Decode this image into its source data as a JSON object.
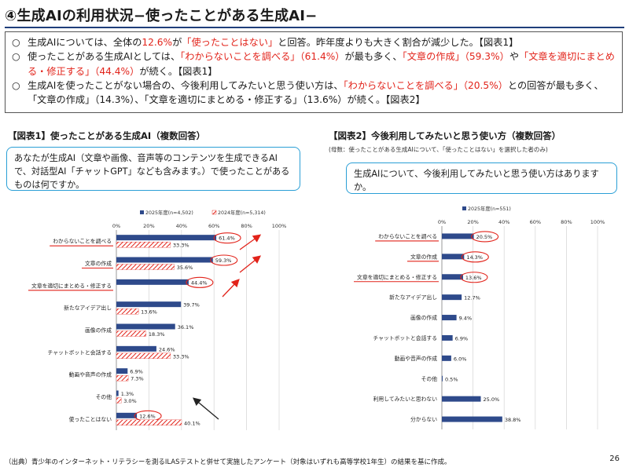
{
  "header": {
    "title": "④生成AIの利用状況−使ったことがある生成AI−"
  },
  "summary": {
    "bullet_mark": "○",
    "bullets": [
      [
        {
          "t": "生成AIについては、全体の",
          "red": false
        },
        {
          "t": "12.6%",
          "red": true
        },
        {
          "t": "が",
          "red": false
        },
        {
          "t": "「使ったことはない」",
          "red": true
        },
        {
          "t": "と回答。昨年度よりも大きく割合が減少した。【図表1】",
          "red": false
        }
      ],
      [
        {
          "t": "使ったことがある生成AIとしては、",
          "red": false
        },
        {
          "t": "「わからないことを調べる」（61.4%）",
          "red": true
        },
        {
          "t": "が最も多く、",
          "red": false
        },
        {
          "t": "「文章の作成」（59.3%）",
          "red": true
        },
        {
          "t": "や",
          "red": false
        },
        {
          "t": "「文章を適切にまとめる・修正する」（44.4%）",
          "red": true
        },
        {
          "t": "が続く。【図表1】",
          "red": false
        }
      ],
      [
        {
          "t": "生成AIを使ったことがない場合の、今後利用してみたいと思う使い方は、",
          "red": false
        },
        {
          "t": "「わからないことを調べる」（20.5%）",
          "red": true
        },
        {
          "t": "との回答が最も多く、「文章の作成」（14.3%）、「文章を適切にまとめる・修正する」（13.6%）が続く。【図表2】",
          "red": false
        }
      ]
    ]
  },
  "fig1": {
    "title": "【図表1】使ったことがある生成AI（複数回答）",
    "question": "あなたが生成AI（文章や画像、音声等のコンテンツを生成できるAIで、対話型AI「チャットGPT」なども含みます。）で使ったことがあるものは何ですか。"
  },
  "fig2": {
    "title": "【図表2】今後利用してみたいと思う使い方（複数回答）",
    "note": "(母数：使ったことがある生成AIについて、「使ったことはない」を選択した者のみ)",
    "question": "生成AIについて、今後利用してみたいと思う使い方はありますか。"
  },
  "chart_data": [
    {
      "type": "bar",
      "orientation": "horizontal",
      "categories": [
        "わからないことを調べる",
        "文章の作成",
        "文章を適切にまとめる・修正する",
        "新たなアイデア出し",
        "画像の作成",
        "チャットボットと会話する",
        "動画や音声の作成",
        "その他",
        "使ったことはない"
      ],
      "series": [
        {
          "name": "2025年度(n=4,502)",
          "values": [
            61.4,
            59.3,
            44.4,
            39.7,
            36.1,
            24.6,
            6.9,
            1.3,
            12.6
          ],
          "color": "#2e4a8b"
        },
        {
          "name": "2024年度(n=5,314)",
          "values": [
            33.3,
            35.6,
            null,
            13.6,
            18.3,
            33.3,
            7.3,
            3.0,
            40.1
          ],
          "color": "#e2231a",
          "pattern": "hatch"
        }
      ],
      "value_labels_2025": [
        "61.4%",
        "59.3%",
        "44.4%",
        "39.7%",
        "36.1%",
        "24.6%",
        "6.9%",
        "1.3%",
        "12.6%"
      ],
      "value_labels_2024": [
        "33.3%",
        "35.6%",
        "",
        "13.6%",
        "18.3%",
        "33.3%",
        "7.3%",
        "3.0%",
        "40.1%"
      ],
      "xlim": [
        0,
        100
      ],
      "xticks": [
        "0%",
        "20%",
        "40%",
        "60%",
        "80%",
        "100%"
      ],
      "grid": true,
      "legend": "top",
      "highlighted_categories": [
        "わからないことを調べる",
        "文章の作成",
        "文章を適切にまとめる・修正する"
      ],
      "circled_labels": [
        "61.4%",
        "59.3%",
        "44.4%",
        "12.6%"
      ]
    },
    {
      "type": "bar",
      "orientation": "horizontal",
      "categories": [
        "わからないことを調べる",
        "文章の作成",
        "文章を適切にまとめる・修正する",
        "新たなアイデア出し",
        "画像の作成",
        "チャットボットと会話する",
        "動画や音声の作成",
        "その他",
        "利用してみたいと思わない",
        "分からない"
      ],
      "series": [
        {
          "name": "2025年度(n=551)",
          "values": [
            20.5,
            14.3,
            13.6,
            12.7,
            9.4,
            6.9,
            6.0,
            0.5,
            25.0,
            38.8
          ],
          "color": "#2e4a8b"
        }
      ],
      "value_labels": [
        "20.5%",
        "14.3%",
        "13.6%",
        "12.7%",
        "9.4%",
        "6.9%",
        "6.0%",
        "0.5%",
        "25.0%",
        "38.8%"
      ],
      "xlim": [
        0,
        100
      ],
      "xticks": [
        "0%",
        "20%",
        "40%",
        "60%",
        "80%",
        "100%"
      ],
      "grid": true,
      "legend": "top",
      "highlighted_categories": [
        "わからないことを調べる",
        "文章の作成",
        "文章を適切にまとめる・修正する"
      ],
      "circled_labels": [
        "20.5%",
        "14.3%",
        "13.6%"
      ]
    }
  ],
  "footer": {
    "source": "（出典）青少年のインターネット・リテラシーを測るILASテストと併せて実施したアンケート（対象はいずれも高等学校1年生）の結果を基に作成。",
    "page_number": "26"
  },
  "colors": {
    "title_rule": "#1f3e7a",
    "bar_2025": "#2e4a8b",
    "bar_2024": "#e2231a",
    "highlight": "#e2231a",
    "question_border": "#2a9fd6"
  }
}
